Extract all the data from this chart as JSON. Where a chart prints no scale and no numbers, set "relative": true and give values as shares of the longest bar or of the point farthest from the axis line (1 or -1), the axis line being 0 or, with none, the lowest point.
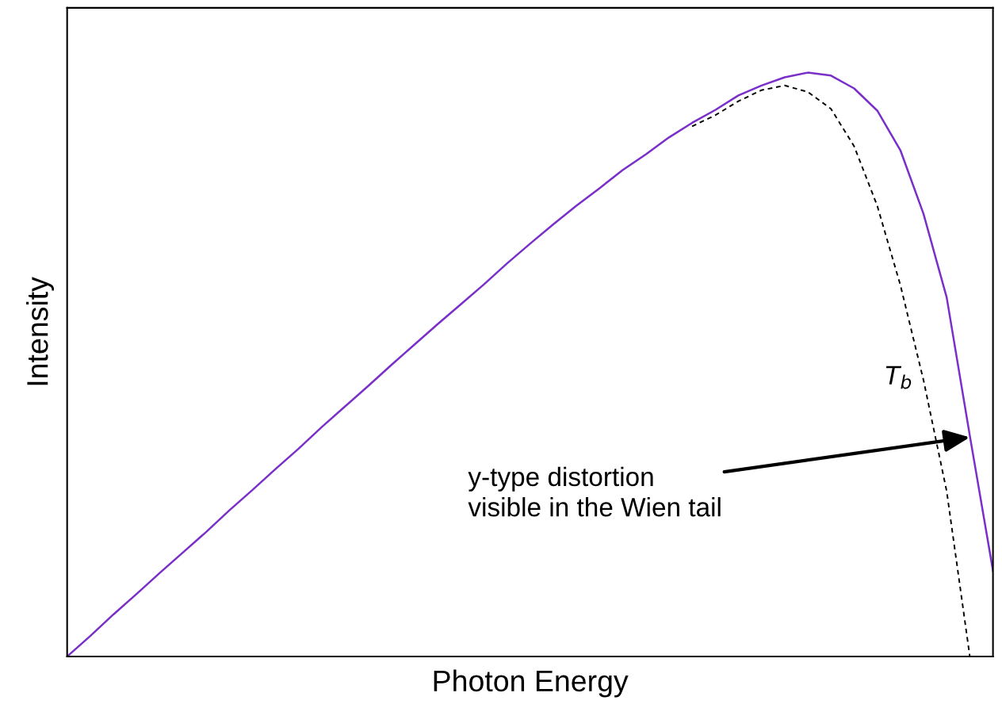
{
  "chart_data": {
    "type": "line",
    "relative": true,
    "xlabel": "Photon Energy",
    "ylabel": "Intensity",
    "tick_labels": false,
    "categories": [
      null,
      null,
      null,
      null,
      null,
      null,
      null,
      null,
      null,
      null,
      null,
      null,
      null,
      null,
      null,
      null,
      null,
      null,
      null,
      null,
      null,
      null,
      null,
      null,
      null,
      null,
      null,
      null,
      null,
      null,
      null,
      null,
      null,
      null,
      null,
      null,
      null,
      null,
      null,
      null,
      null
    ],
    "series": [
      {
        "color": "#7b2fc9",
        "line_style": "solid",
        "values": [
          0,
          0.035,
          0.072,
          0.107,
          0.143,
          0.178,
          0.213,
          0.25,
          0.285,
          0.321,
          0.356,
          0.393,
          0.428,
          0.463,
          0.499,
          0.534,
          0.569,
          0.603,
          0.637,
          0.673,
          0.707,
          0.74,
          0.772,
          0.802,
          0.833,
          0.86,
          0.889,
          0.914,
          0.936,
          0.961,
          0.978,
          0.992,
          1,
          0.995,
          0.973,
          0.935,
          0.867,
          0.758,
          0.615,
          0.378,
          0.147
        ]
      },
      {
        "color": "#000000",
        "line_style": "dashed",
        "values": [
          null,
          null,
          null,
          null,
          null,
          null,
          null,
          null,
          null,
          null,
          null,
          null,
          null,
          null,
          null,
          null,
          null,
          null,
          null,
          null,
          null,
          null,
          null,
          null,
          null,
          null,
          null,
          0.908,
          0.927,
          0.951,
          0.97,
          0.978,
          0.967,
          0.938,
          0.874,
          0.772,
          0.636,
          0.473,
          0.283,
          0,
          null
        ]
      }
    ],
    "annotations": [
      "T$_{b}$",
      "y-type distortion\nvisible in the Wien tail"
    ]
  }
}
